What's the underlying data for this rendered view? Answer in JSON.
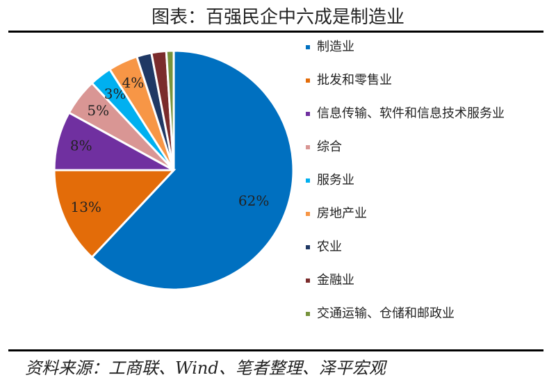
{
  "chart_data": {
    "type": "pie",
    "title": "图表：百强民企中六成是制造业",
    "categories": [
      "制造业",
      "批发和零售业",
      "信息传输、软件和信息技术服务业",
      "综合",
      "服务业",
      "房地产业",
      "农业",
      "金融业",
      "交通运输、仓储和邮政业"
    ],
    "values": [
      62,
      13,
      8,
      5,
      3,
      4,
      2,
      2,
      1
    ],
    "value_labels": [
      "62%",
      "13%",
      "8%",
      "5%",
      "3%",
      "4%",
      null,
      null,
      null
    ],
    "colors": [
      "#0070c0",
      "#e36c09",
      "#7030a0",
      "#d99694",
      "#00b0f0",
      "#f79646",
      "#1f3864",
      "#7b2c2c",
      "#77933c"
    ],
    "source": "资料来源：工商联、Wind、笔者整理、泽平宏观"
  }
}
